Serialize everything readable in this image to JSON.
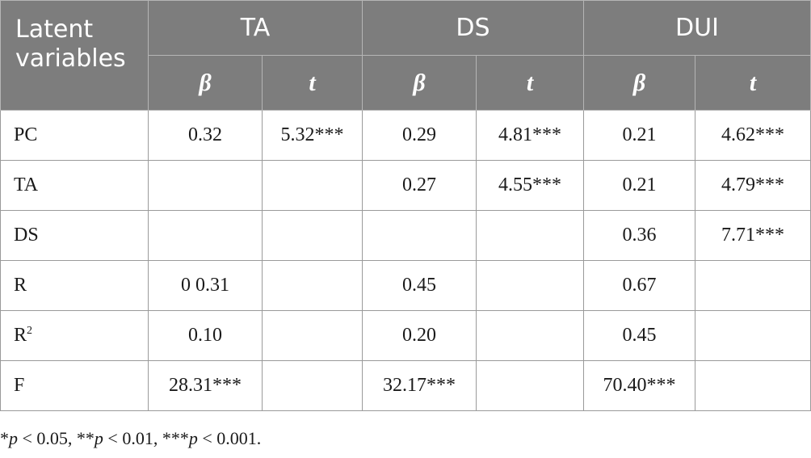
{
  "header": {
    "latent": "Latent variables",
    "groups": [
      "TA",
      "DS",
      "DUI"
    ],
    "beta": "β",
    "t": "t"
  },
  "rows": [
    {
      "label": "PC",
      "cells": [
        "0.32",
        "5.32***",
        "0.29",
        "4.81***",
        "0.21",
        "4.62***"
      ]
    },
    {
      "label": "TA",
      "cells": [
        "",
        "",
        "0.27",
        "4.55***",
        "0.21",
        "4.79***"
      ]
    },
    {
      "label": "DS",
      "cells": [
        "",
        "",
        "",
        "",
        "0.36",
        "7.71***"
      ]
    },
    {
      "label": "R",
      "cells": [
        "0 0.31",
        "",
        "0.45",
        "",
        "0.67",
        ""
      ]
    },
    {
      "label": "R",
      "label_sup": "2",
      "cells": [
        "0.10",
        "",
        "0.20",
        "",
        "0.45",
        ""
      ]
    },
    {
      "label": "F",
      "cells": [
        "28.31***",
        "",
        "32.17***",
        "",
        "70.40***",
        ""
      ]
    }
  ],
  "footnote": {
    "parts": [
      "*",
      "p",
      " < 0.05, **",
      "p",
      " < 0.01, ***",
      "p",
      " < 0.001."
    ]
  },
  "colors": {
    "header_bg": "#7d7d7d",
    "header_text": "#ffffff",
    "grid": "#9a9a9a"
  }
}
